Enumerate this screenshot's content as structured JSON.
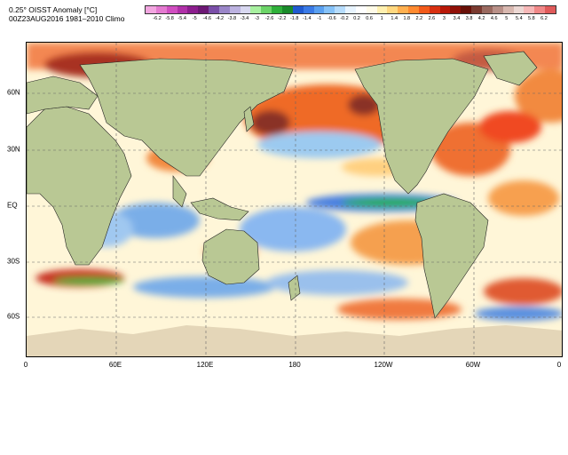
{
  "header": {
    "title": "0.25° OISST Anomaly [°C]",
    "subtitle": "00Z23AUG2016 1981–2010 Climo"
  },
  "colorbar": {
    "labels": [
      "-6.2",
      "-5.8",
      "-5.4",
      "-5",
      "-4.6",
      "-4.2",
      "-3.8",
      "-3.4",
      "-3",
      "-2.6",
      "-2.2",
      "-1.8",
      "-1.4",
      "-1",
      "-0.6",
      "-0.2",
      "0.2",
      "0.6",
      "1",
      "1.4",
      "1.8",
      "2.2",
      "2.6",
      "3",
      "3.4",
      "3.8",
      "4.2",
      "4.6",
      "5",
      "5.4",
      "5.8",
      "6.2"
    ],
    "colors": [
      "#f2a6e0",
      "#e47ad0",
      "#d04ec0",
      "#b030a8",
      "#8c1e8e",
      "#6c1874",
      "#7a4ea8",
      "#9a86c8",
      "#bcb2e0",
      "#d8d8f0",
      "#a8f0a0",
      "#6cd468",
      "#2fb03a",
      "#1a8a2a",
      "#205ad0",
      "#3a7ae6",
      "#5aa0f0",
      "#86c2f8",
      "#b6dcfc",
      "#e8f4ff",
      "#ffffff",
      "#fffbe8",
      "#fff0b0",
      "#ffd880",
      "#ffb050",
      "#ff8a30",
      "#f25a1a",
      "#d83010",
      "#b81808",
      "#901008",
      "#681008",
      "#7a3a30",
      "#9a6a60",
      "#b89088",
      "#d8b8b0",
      "#ecd8d4",
      "#f6b8b8",
      "#f08888",
      "#e05a5a"
    ]
  },
  "map": {
    "lat_labels": [
      "60N",
      "30N",
      "EQ",
      "30S",
      "60S"
    ],
    "lon_labels": [
      "0",
      "60E",
      "120E",
      "180",
      "120W",
      "60W",
      "0"
    ]
  }
}
